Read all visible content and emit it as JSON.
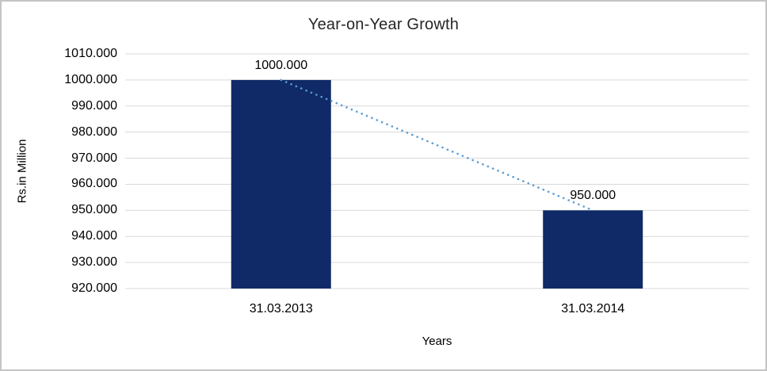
{
  "chart_data": {
    "type": "bar",
    "title": "Year-on-Year Growth",
    "xlabel": "Years",
    "ylabel": "Rs.in Million",
    "categories": [
      "31.03.2013",
      "31.03.2014"
    ],
    "values": [
      1000,
      950
    ],
    "data_labels": [
      "1000.000",
      "950.000"
    ],
    "ylim": [
      920,
      1010
    ],
    "ytick_step": 10,
    "ytick_labels": [
      "1010.000",
      "1000.000",
      "990.000",
      "980.000",
      "970.000",
      "960.000",
      "950.000",
      "940.000",
      "930.000",
      "920.000"
    ],
    "grid": true,
    "legend_position": "none",
    "trendline": {
      "type": "linear",
      "style": "dotted",
      "color": "#5B9BD5",
      "from_category_index": 0,
      "from_value": 1000,
      "to_category_index": 1,
      "to_value": 950
    },
    "colors": {
      "bar": "#0F2A66",
      "gridline": "#D9D9D9",
      "frame_border": "#C4C4C4",
      "text": "#000000",
      "title_text": "#262626",
      "background": "#FFFFFF"
    }
  }
}
